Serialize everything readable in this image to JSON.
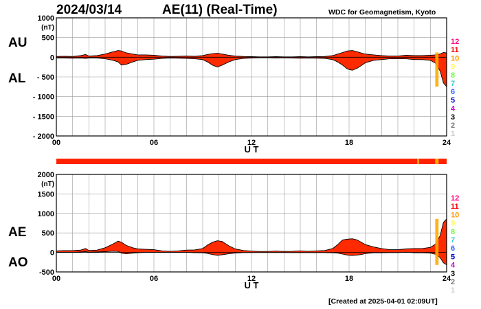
{
  "header": {
    "date": "2024/03/14",
    "title": "AE(11) (Real-Time)",
    "source": "WDC for Geomagnetism, Kyoto",
    "created": "[Created at 2025-04-01 02:09UT]"
  },
  "colors": {
    "fill": "#ff2a00",
    "grid": "#9a9a9a",
    "bar": "#ff2200",
    "bar_highlight": "#ffaa00"
  },
  "chart_data": [
    {
      "type": "area",
      "name": "AU/AL panel",
      "labels": {
        "upper": "AU",
        "lower": "AL"
      },
      "ylabel": "(nT)",
      "xlabel": "U T",
      "ylim": [
        -2000,
        1000
      ],
      "yticks": [
        "1000",
        "500",
        "0",
        "- 500",
        "- 1000",
        "- 1500",
        "- 2000"
      ],
      "xlim": [
        0,
        24
      ],
      "xticks": [
        "00",
        "06",
        "12",
        "18",
        "24"
      ],
      "grid": true,
      "x": [
        0,
        0.5,
        1,
        1.5,
        1.8,
        2,
        2.5,
        3,
        3.5,
        3.8,
        4,
        4.3,
        4.7,
        5,
        5.5,
        6,
        6.5,
        7,
        7.5,
        8,
        8.5,
        9,
        9.3,
        9.6,
        9.9,
        10.2,
        10.6,
        11,
        11.5,
        12,
        12.5,
        13,
        13.5,
        14,
        14.5,
        15,
        15.5,
        16,
        16.5,
        17,
        17.3,
        17.6,
        17.9,
        18.2,
        18.5,
        18.8,
        19,
        19.5,
        20,
        20.5,
        21,
        21.5,
        22,
        22.5,
        23,
        23.3,
        23.6,
        23.8,
        24
      ],
      "series": [
        {
          "name": "AU",
          "values": [
            20,
            25,
            20,
            40,
            70,
            30,
            40,
            80,
            140,
            170,
            160,
            110,
            80,
            60,
            60,
            50,
            30,
            20,
            25,
            30,
            25,
            40,
            70,
            90,
            100,
            80,
            50,
            30,
            20,
            15,
            10,
            10,
            15,
            10,
            10,
            15,
            10,
            15,
            20,
            40,
            80,
            120,
            160,
            170,
            140,
            100,
            80,
            60,
            40,
            30,
            30,
            50,
            40,
            40,
            50,
            60,
            80,
            120,
            110
          ]
        },
        {
          "name": "AL",
          "values": [
            -20,
            -20,
            -25,
            -20,
            -30,
            -20,
            -20,
            -40,
            -80,
            -120,
            -200,
            -180,
            -120,
            -80,
            -60,
            -50,
            -30,
            -20,
            -25,
            -30,
            -40,
            -60,
            -120,
            -200,
            -250,
            -200,
            -120,
            -60,
            -30,
            -20,
            -15,
            -15,
            -20,
            -15,
            -20,
            -25,
            -20,
            -25,
            -30,
            -60,
            -120,
            -200,
            -300,
            -330,
            -280,
            -200,
            -140,
            -80,
            -60,
            -40,
            -40,
            -40,
            -60,
            -60,
            -80,
            -150,
            -350,
            -650,
            -750
          ]
        }
      ]
    },
    {
      "type": "area",
      "name": "AE/AO panel",
      "labels": {
        "upper": "AE",
        "lower": "AO"
      },
      "ylabel": "(nT)",
      "xlabel": "U T",
      "ylim": [
        -500,
        2000
      ],
      "yticks": [
        "2000",
        "1500",
        "1000",
        "500",
        "0",
        "-500"
      ],
      "xlim": [
        0,
        24
      ],
      "xticks": [
        "00",
        "06",
        "12",
        "18",
        "24"
      ],
      "grid": true,
      "x": [
        0,
        0.5,
        1,
        1.5,
        1.8,
        2,
        2.5,
        3,
        3.5,
        3.8,
        4,
        4.3,
        4.7,
        5,
        5.5,
        6,
        6.5,
        7,
        7.5,
        8,
        8.5,
        9,
        9.3,
        9.6,
        9.9,
        10.2,
        10.6,
        11,
        11.5,
        12,
        12.5,
        13,
        13.5,
        14,
        14.5,
        15,
        15.5,
        16,
        16.5,
        17,
        17.3,
        17.6,
        17.9,
        18.2,
        18.5,
        18.8,
        19,
        19.5,
        20,
        20.5,
        21,
        21.5,
        22,
        22.5,
        23,
        23.3,
        23.6,
        23.8,
        24
      ],
      "series": [
        {
          "name": "AE",
          "values": [
            40,
            45,
            45,
            60,
            100,
            50,
            60,
            120,
            220,
            290,
            260,
            180,
            120,
            90,
            80,
            70,
            40,
            30,
            40,
            60,
            65,
            100,
            190,
            260,
            300,
            280,
            170,
            90,
            50,
            35,
            25,
            25,
            35,
            25,
            30,
            40,
            30,
            40,
            50,
            100,
            200,
            320,
            340,
            350,
            320,
            250,
            200,
            140,
            100,
            70,
            70,
            90,
            100,
            100,
            130,
            210,
            430,
            770,
            860
          ]
        },
        {
          "name": "AO",
          "values": [
            0,
            2,
            -2,
            10,
            20,
            5,
            10,
            20,
            30,
            25,
            -20,
            -35,
            -20,
            -10,
            0,
            0,
            0,
            0,
            0,
            0,
            -8,
            -10,
            -25,
            -55,
            -75,
            -60,
            -35,
            -15,
            -5,
            -3,
            -3,
            -3,
            -3,
            -3,
            -5,
            -5,
            -5,
            -5,
            -5,
            -10,
            -20,
            -40,
            -70,
            -80,
            -70,
            -50,
            -30,
            -10,
            -10,
            -5,
            -5,
            5,
            -10,
            -10,
            -15,
            -45,
            -135,
            -265,
            -320
          ]
        }
      ]
    },
    {
      "type": "bar",
      "name": "station count strip",
      "legend": [
        "12",
        "11",
        "10",
        "9",
        "8",
        "7",
        "6",
        "5",
        "4",
        "3",
        "2",
        "1"
      ],
      "legend_colors": [
        "#ff0080",
        "#ff0000",
        "#ff9900",
        "#ffff33",
        "#66ff33",
        "#33cccc",
        "#3366ff",
        "#0000cc",
        "#cc00cc",
        "#000000",
        "#777777",
        "#cccccc"
      ],
      "legend_placement": "right",
      "segments": [
        {
          "start": 0,
          "end": 22.2,
          "stations": "11"
        },
        {
          "start": 22.2,
          "end": 22.3,
          "stations": "10"
        },
        {
          "start": 22.3,
          "end": 23.3,
          "stations": "11"
        },
        {
          "start": 23.3,
          "end": 23.5,
          "stations": "10"
        },
        {
          "start": 23.5,
          "end": 24,
          "stations": "11"
        }
      ]
    }
  ]
}
